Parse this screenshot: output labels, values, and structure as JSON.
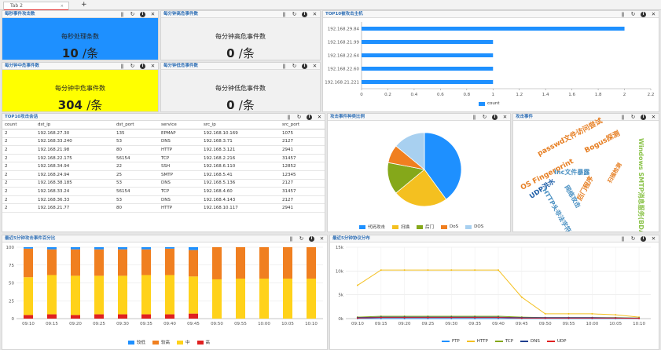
{
  "tabs": [
    {
      "label": "Tab 2",
      "close": "×"
    }
  ],
  "tab_add": "+",
  "panel_icons": {
    "pause": "ǁ",
    "refresh": "↻",
    "info": "i",
    "close": "✕"
  },
  "stat_panels": {
    "per_sec": {
      "title": "每秒事件攻击数",
      "label": "每秒处理条数",
      "value": "10",
      "unit": "/条",
      "color": "#1e90ff"
    },
    "high": {
      "title": "每分钟高危事件数",
      "label": "每分钟高危事件数",
      "value": "0",
      "unit": "/条",
      "color": "#f1f1f1"
    },
    "mid": {
      "title": "每分钟中危事件数",
      "label": "每分钟中危事件数",
      "value": "304",
      "unit": "/条",
      "color": "#ffff00"
    },
    "low": {
      "title": "每分钟低危事件数",
      "label": "每分钟低危事件数",
      "value": "0",
      "unit": "/条",
      "color": "#f1f1f1"
    }
  },
  "top_hosts": {
    "title": "TOP10被攻击主机",
    "legend": "count"
  },
  "top_sessions": {
    "title": "TOP10攻击会话",
    "columns": [
      "count",
      "dst_ip",
      "dst_port",
      "service",
      "src_ip",
      "src_port"
    ],
    "rows": [
      [
        "2",
        "192.168.27.30",
        "135",
        "EPMAP",
        "192.168.10.169",
        "1075"
      ],
      [
        "2",
        "192.168.33.240",
        "53",
        "DNS",
        "192.168.3.71",
        "2127"
      ],
      [
        "2",
        "192.168.21.98",
        "80",
        "HTTP",
        "192.168.3.121",
        "2941"
      ],
      [
        "2",
        "192.168.22.175",
        "56154",
        "TCP",
        "192.168.2.216",
        "31457"
      ],
      [
        "2",
        "192.168.34.94",
        "22",
        "SSH",
        "192.168.6.110",
        "12852"
      ],
      [
        "2",
        "192.168.24.94",
        "25",
        "SMTP",
        "192.168.5.41",
        "12345"
      ],
      [
        "2",
        "192.168.38.185",
        "53",
        "DNS",
        "192.168.5.136",
        "2127"
      ],
      [
        "2",
        "192.168.33.24",
        "56154",
        "TCP",
        "192.168.4.60",
        "31457"
      ],
      [
        "2",
        "192.168.36.33",
        "53",
        "DNS",
        "192.168.4.143",
        "2127"
      ],
      [
        "2",
        "192.168.21.77",
        "80",
        "HTTP",
        "192.168.10.117",
        "2941"
      ]
    ]
  },
  "pie_panel": {
    "title": "攻击事件种类比例"
  },
  "wordcloud": {
    "title": "攻击事件",
    "words": [
      {
        "text": "passwd文件访问尝试",
        "color": "#e67e22"
      },
      {
        "text": "Bogus探测",
        "color": "#e67e22"
      },
      {
        "text": "OS Fingerprint",
        "color": "#e67e22"
      },
      {
        "text": "Inc文件暴露",
        "color": "#4a90c2"
      },
      {
        "text": "UDP洪水",
        "color": "#1f5fa8"
      },
      {
        "text": "后门程序",
        "color": "#e67e22"
      },
      {
        "text": "网络攻击",
        "color": "#4a90c2"
      },
      {
        "text": "HTTP头非法字符",
        "color": "#4a90c2"
      },
      {
        "text": "扫描检测",
        "color": "#e67e22"
      },
      {
        "text": "Windows SMTP消息服务(BDAT)",
        "color": "#8bc34a"
      }
    ]
  },
  "stack_panel": {
    "title": "最近5分钟攻击事件百分比"
  },
  "line_panel": {
    "title": "最近5分钟协议分布"
  },
  "chart_data": [
    {
      "type": "bar",
      "orientation": "horizontal",
      "categories": [
        "192.168.29.84",
        "192.168.21.99",
        "192.168.22.64",
        "192.168.22.60",
        "192.168.21.221"
      ],
      "series": [
        {
          "name": "count",
          "values": [
            2,
            1,
            1,
            1,
            1
          ]
        }
      ],
      "xlim": [
        0,
        2.2
      ],
      "xticks": [
        "0",
        "0.2",
        "0.4",
        "0.6",
        "0.8",
        "1",
        "1.2",
        "1.4",
        "1.6",
        "1.8",
        "2",
        "2.2"
      ],
      "color": "#1e90ff",
      "grid": false,
      "legend": "bottom"
    },
    {
      "type": "pie",
      "labels": [
        "代码攻击",
        "扫描",
        "后门",
        "DoS",
        "DOS"
      ],
      "values": [
        40,
        24,
        14,
        8,
        14
      ],
      "colors": [
        "#1e90ff",
        "#f4c020",
        "#85a81a",
        "#f07f20",
        "#a8d0f0"
      ],
      "legend": "bottom"
    },
    {
      "type": "bar",
      "stacked": true,
      "categories": [
        "09:10",
        "09:15",
        "09:20",
        "09:25",
        "09:30",
        "09:35",
        "09:40",
        "09:45",
        "09:50",
        "09:55",
        "10:00",
        "10:05",
        "10:10"
      ],
      "series": [
        {
          "name": "高",
          "values": [
            5,
            6,
            5,
            6,
            6,
            6,
            6,
            7,
            0,
            0,
            0,
            0,
            0
          ]
        },
        {
          "name": "中",
          "values": [
            53,
            55,
            55,
            54,
            54,
            55,
            55,
            52,
            55,
            56,
            56,
            56,
            56
          ]
        },
        {
          "name": "较高",
          "values": [
            40,
            36,
            37,
            37,
            37,
            36,
            37,
            37,
            45,
            44,
            44,
            44,
            44
          ]
        },
        {
          "name": "较低",
          "values": [
            2,
            3,
            3,
            3,
            3,
            3,
            2,
            4,
            0,
            0,
            0,
            0,
            0
          ]
        }
      ],
      "colors": {
        "较低": "#1e90ff",
        "较高": "#f07f20",
        "中": "#ffd21a",
        "高": "#e02020"
      },
      "legend_order": [
        "较低",
        "较高",
        "中",
        "高"
      ],
      "ylim": [
        0,
        100
      ],
      "yticks": [
        "0",
        "25",
        "50",
        "75",
        "100"
      ],
      "grid": true,
      "legend": "bottom"
    },
    {
      "type": "line",
      "x": [
        "09:10",
        "09:15",
        "09:20",
        "09:25",
        "09:30",
        "09:35",
        "09:40",
        "09:45",
        "09:50",
        "09:55",
        "10:00",
        "10:05",
        "10:10"
      ],
      "series": [
        {
          "name": "FTP",
          "values": [
            0,
            0,
            0,
            0,
            0,
            0,
            0,
            0,
            0,
            0,
            0,
            0,
            0
          ],
          "color": "#1e90ff"
        },
        {
          "name": "HTTP",
          "values": [
            7000,
            10200,
            10200,
            10200,
            10200,
            10200,
            10200,
            4500,
            1000,
            1000,
            1000,
            800,
            300
          ],
          "color": "#f4c020"
        },
        {
          "name": "TCP",
          "values": [
            300,
            500,
            500,
            500,
            500,
            500,
            500,
            300,
            200,
            200,
            200,
            200,
            100
          ],
          "color": "#85a81a"
        },
        {
          "name": "DNS",
          "values": [
            200,
            300,
            300,
            300,
            300,
            300,
            300,
            200,
            200,
            200,
            200,
            150,
            100
          ],
          "color": "#1f3f8f"
        },
        {
          "name": "UDP",
          "values": [
            100,
            200,
            200,
            200,
            200,
            200,
            200,
            100,
            100,
            100,
            100,
            100,
            50
          ],
          "color": "#e02020"
        }
      ],
      "ylim": [
        0,
        15000
      ],
      "yticks": [
        "0k",
        "5k",
        "10k",
        "15k"
      ],
      "grid": true,
      "legend": "bottom"
    }
  ]
}
